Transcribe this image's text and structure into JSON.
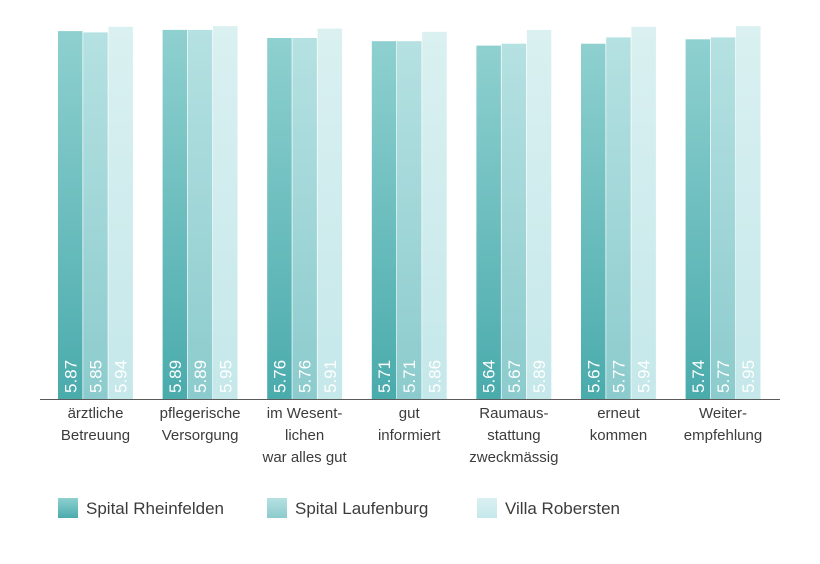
{
  "chart_data": {
    "type": "bar",
    "title": "",
    "xlabel": "",
    "ylabel": "",
    "categories": [
      [
        "ärztliche",
        "Betreuung"
      ],
      [
        "pflegerische",
        "Versorgung"
      ],
      [
        "im Wesent-",
        "lichen",
        "war alles gut"
      ],
      [
        "gut",
        "informiert"
      ],
      [
        "Raumaus-",
        "stattung",
        "zweckmässig"
      ],
      [
        "erneut",
        "kommen"
      ],
      [
        "Weiter-",
        "empfehlung"
      ]
    ],
    "series": [
      {
        "name": "Spital Rheinfelden",
        "values": [
          5.87,
          5.89,
          5.76,
          5.71,
          5.64,
          5.67,
          5.74
        ]
      },
      {
        "name": "Spital Laufenburg",
        "values": [
          5.85,
          5.89,
          5.76,
          5.71,
          5.67,
          5.77,
          5.77
        ]
      },
      {
        "name": "Villa Robersten",
        "values": [
          5.94,
          5.95,
          5.91,
          5.86,
          5.89,
          5.94,
          5.95
        ]
      }
    ],
    "value_labels": [
      [
        "5.87",
        "5.89",
        "5.76",
        "5.71",
        "5.64",
        "5.67",
        "5.74"
      ],
      [
        "5.85",
        "5.89",
        "5.76",
        "5.71",
        "5.67",
        "5.77",
        "5.77"
      ],
      [
        "5.94",
        "5.95",
        "5.91",
        "5.86",
        "5.89",
        "5.94",
        "5.95"
      ]
    ],
    "ylim": [
      0,
      6
    ],
    "grid": false,
    "legend": "bottom-left",
    "colors": {
      "series": [
        {
          "top": "#8fd0d0",
          "bottom": "#4aabac"
        },
        {
          "top": "#b5e1e2",
          "bottom": "#8ccbcd"
        },
        {
          "top": "#daf0f1",
          "bottom": "#c5e8ea"
        }
      ],
      "axis": "#5a5a5a",
      "text": "#3c3c3c",
      "value_text": "#ffffff"
    }
  }
}
